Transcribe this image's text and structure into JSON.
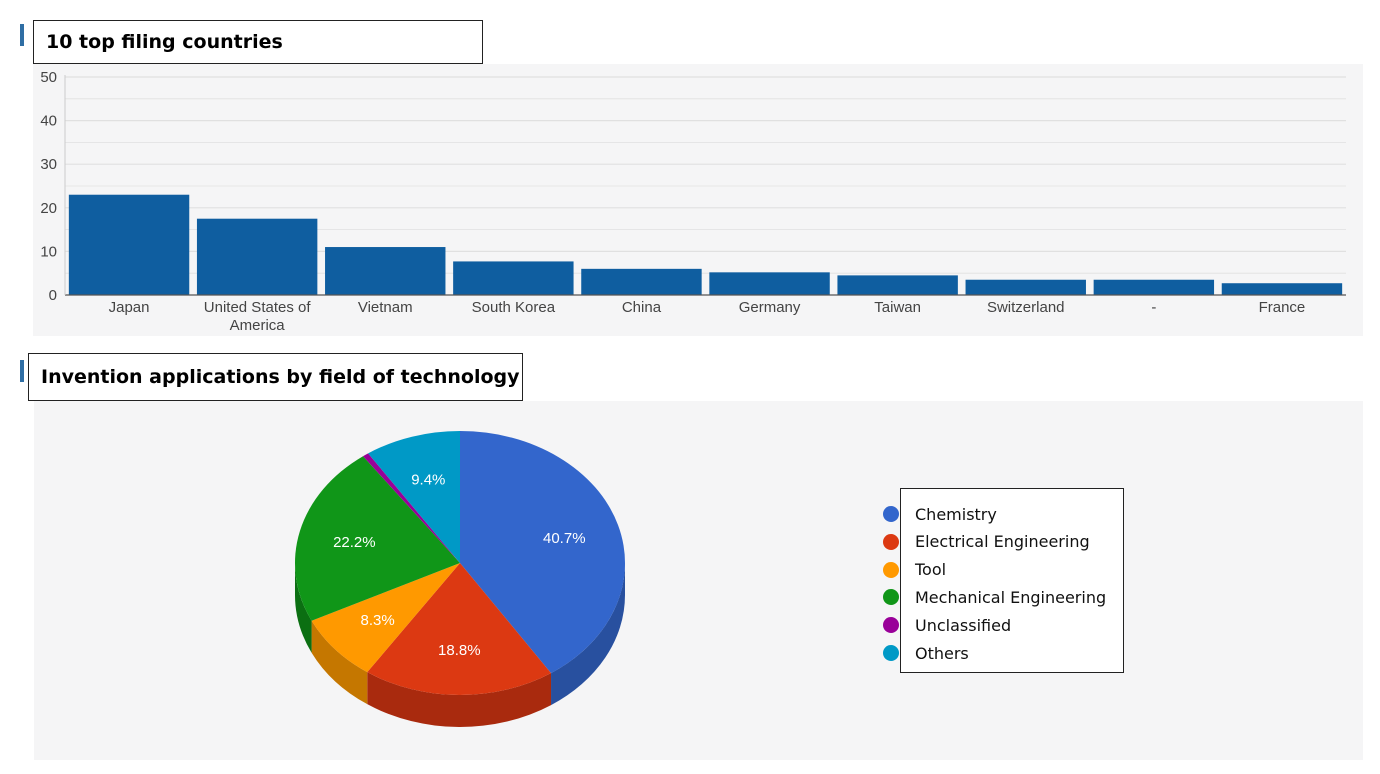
{
  "bar_section": {
    "title": "10 top filing countries"
  },
  "pie_section": {
    "title": "Invention applications by field of technology"
  },
  "chart_data": [
    {
      "type": "bar",
      "title": "10 top filing countries",
      "categories": [
        "Japan",
        "United States of America",
        "Vietnam",
        "South Korea",
        "China",
        "Germany",
        "Taiwan",
        "Switzerland",
        "-",
        "France"
      ],
      "category_lines": [
        [
          "Japan"
        ],
        [
          "United States of",
          "America"
        ],
        [
          "Vietnam"
        ],
        [
          "South Korea"
        ],
        [
          "China"
        ],
        [
          "Germany"
        ],
        [
          "Taiwan"
        ],
        [
          "Switzerland"
        ],
        [
          "-"
        ],
        [
          "France"
        ]
      ],
      "values": [
        23,
        17.5,
        11,
        7.7,
        6,
        5.2,
        4.5,
        3.5,
        3.5,
        2.7
      ],
      "ylim": [
        0,
        50
      ],
      "yticks": [
        0,
        10,
        20,
        30,
        40,
        50
      ],
      "grid": true,
      "colors": {
        "bar": "#0f5ea0",
        "grid": "#e0e0e0",
        "axis": "#555555",
        "tick_text": "#444444"
      }
    },
    {
      "type": "pie",
      "title": "Invention applications by field of technology",
      "slices": [
        {
          "label": "Chemistry",
          "value": 40.7,
          "display": "40.7%",
          "color": "#3366cc",
          "side": "#28509f"
        },
        {
          "label": "Electrical Engineering",
          "value": 18.8,
          "display": "18.8%",
          "color": "#dc3912",
          "side": "#a92a0e"
        },
        {
          "label": "Tool",
          "value": 8.3,
          "display": "8.3%",
          "color": "#ff9900",
          "side": "#c57700"
        },
        {
          "label": "Mechanical Engineering",
          "value": 22.2,
          "display": "22.2%",
          "color": "#109618",
          "side": "#0b6f12"
        },
        {
          "label": "Unclassified",
          "value": 0.6,
          "display": "",
          "color": "#990099",
          "side": "#6f006f"
        },
        {
          "label": "Others",
          "value": 9.4,
          "display": "9.4%",
          "color": "#0099c6",
          "side": "#007496"
        }
      ],
      "legend_position": "right",
      "three_d": true
    }
  ]
}
